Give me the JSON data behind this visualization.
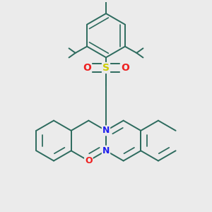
{
  "bg_color": "#ebebeb",
  "bond_color": "#2d6b5e",
  "N_color": "#2020ee",
  "O_color": "#ee2020",
  "S_color": "#cccc00",
  "lw": 1.4,
  "dbo": 0.13,
  "figsize": [
    3.0,
    3.0
  ],
  "dpi": 100,
  "xlim": [
    -4.5,
    4.5
  ],
  "ylim": [
    -4.2,
    4.8
  ]
}
